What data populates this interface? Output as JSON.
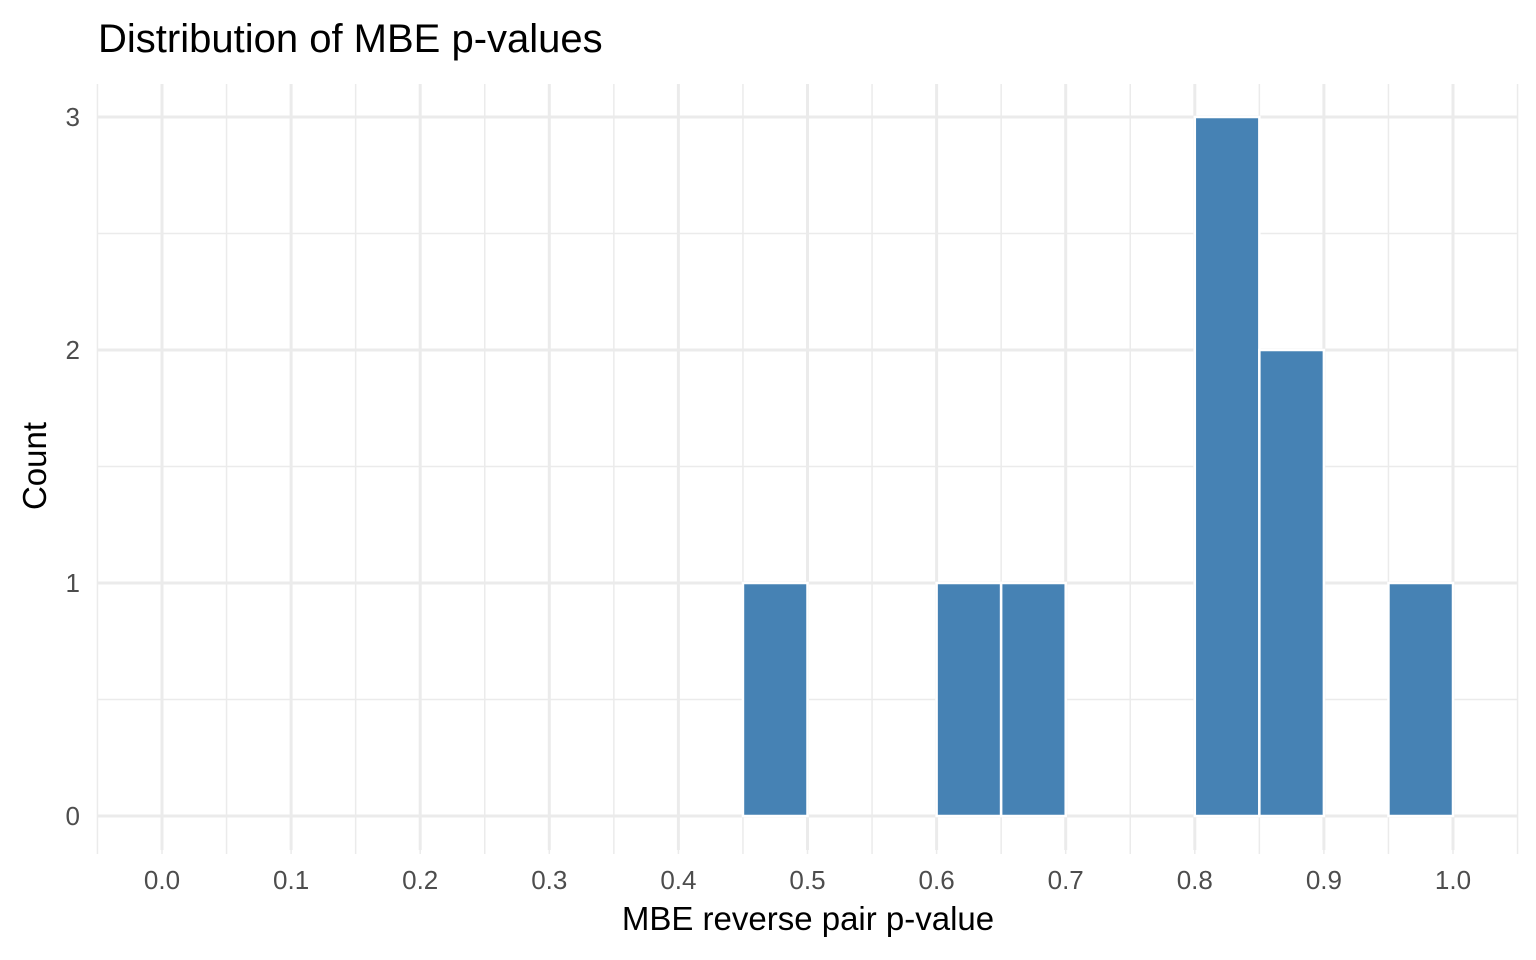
{
  "chart_data": {
    "type": "bar",
    "title": "Distribution of MBE p-values",
    "xlabel": "MBE reverse pair p-value",
    "ylabel": "Count",
    "bin_width": 0.05,
    "xlim": [
      -0.05,
      1.05
    ],
    "ylim": [
      0,
      3
    ],
    "x_ticks": [
      "0.0",
      "0.1",
      "0.2",
      "0.3",
      "0.4",
      "0.5",
      "0.6",
      "0.7",
      "0.8",
      "0.9",
      "1.0"
    ],
    "y_ticks": [
      "0",
      "1",
      "2",
      "3"
    ],
    "bins": [
      {
        "x_start": 0.45,
        "x_end": 0.5,
        "count": 1
      },
      {
        "x_start": 0.6,
        "x_end": 0.65,
        "count": 1
      },
      {
        "x_start": 0.65,
        "x_end": 0.7,
        "count": 1
      },
      {
        "x_start": 0.8,
        "x_end": 0.85,
        "count": 3
      },
      {
        "x_start": 0.85,
        "x_end": 0.9,
        "count": 2
      },
      {
        "x_start": 0.95,
        "x_end": 1.0,
        "count": 1
      }
    ],
    "bar_color": "#4682b4",
    "grid": true,
    "legend": "none"
  }
}
